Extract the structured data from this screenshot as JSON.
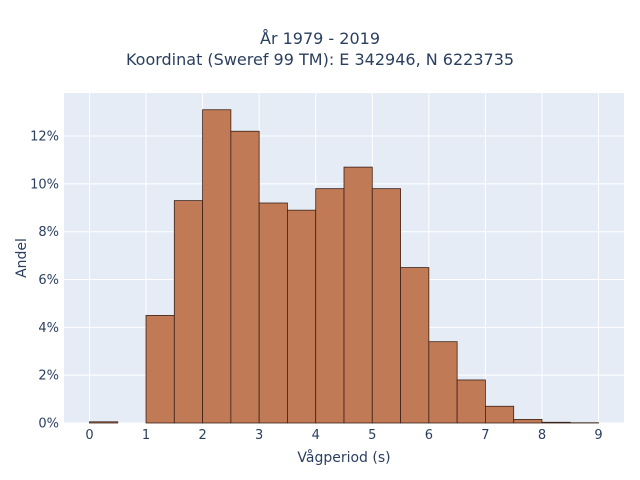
{
  "chart_data": {
    "type": "bar",
    "title": "År 1979 - 2019",
    "subtitle": "Koordinat (Sweref 99 TM): E 342946, N 6223735",
    "xlabel": "Vågperiod (s)",
    "ylabel": "Andel",
    "bin_width": 0.5,
    "bin_starts": [
      0,
      0.5,
      1,
      1.5,
      2,
      2.5,
      3,
      3.5,
      4,
      4.5,
      5,
      5.5,
      6,
      6.5,
      7,
      7.5,
      8,
      8.5
    ],
    "values": [
      0.05,
      0,
      4.5,
      9.3,
      13.1,
      12.2,
      9.2,
      8.9,
      9.8,
      10.7,
      9.8,
      6.5,
      3.4,
      1.8,
      0.7,
      0.15,
      0.03,
      0.01
    ],
    "xlim": [
      -0.45,
      9.45
    ],
    "ylim": [
      0,
      13.8
    ],
    "xticks": [
      0,
      1,
      2,
      3,
      4,
      5,
      6,
      7,
      8,
      9
    ],
    "xtick_labels": [
      "0",
      "1",
      "2",
      "3",
      "4",
      "5",
      "6",
      "7",
      "8",
      "9"
    ],
    "yticks": [
      0,
      2,
      4,
      6,
      8,
      10,
      12
    ],
    "ytick_labels": [
      "0%",
      "2%",
      "4%",
      "6%",
      "8%",
      "10%",
      "12%"
    ],
    "grid": true,
    "colors": {
      "bar_fill": "#c07a55",
      "bar_edge": "#3b2218",
      "plot_bg": "#e5ecf6",
      "grid": "#ffffff"
    }
  }
}
